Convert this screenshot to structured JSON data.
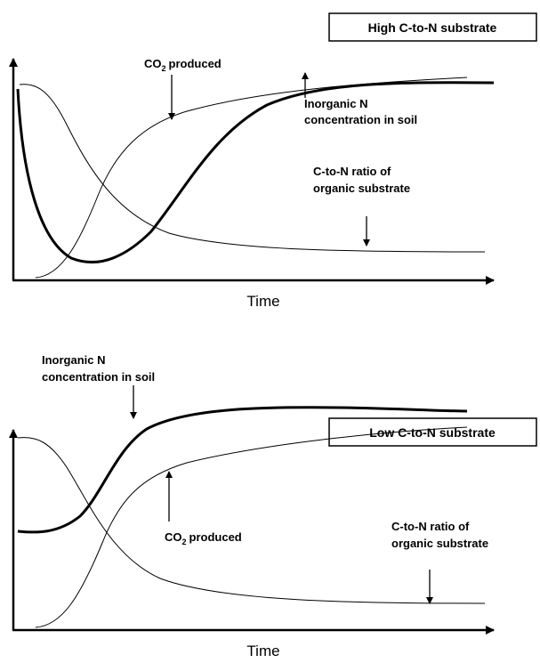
{
  "panels": [
    {
      "box_label": "High C-to-N substrate",
      "x_axis_label": "Time",
      "co2": {
        "text": "CO",
        "sub": "2",
        "rest": "produced"
      },
      "inorganic_n": [
        "Inorganic N",
        "concentration in soil"
      ],
      "cn_ratio": [
        "C-to-N ratio of",
        "organic substrate"
      ]
    },
    {
      "box_label": "Low C-to-N substrate",
      "x_axis_label": "Time",
      "co2": {
        "text": "CO",
        "sub": "2",
        "rest": "produced"
      },
      "inorganic_n": [
        "Inorganic N",
        "concentration in soil"
      ],
      "cn_ratio": [
        "C-to-N ratio of",
        "organic substrate"
      ]
    }
  ]
}
